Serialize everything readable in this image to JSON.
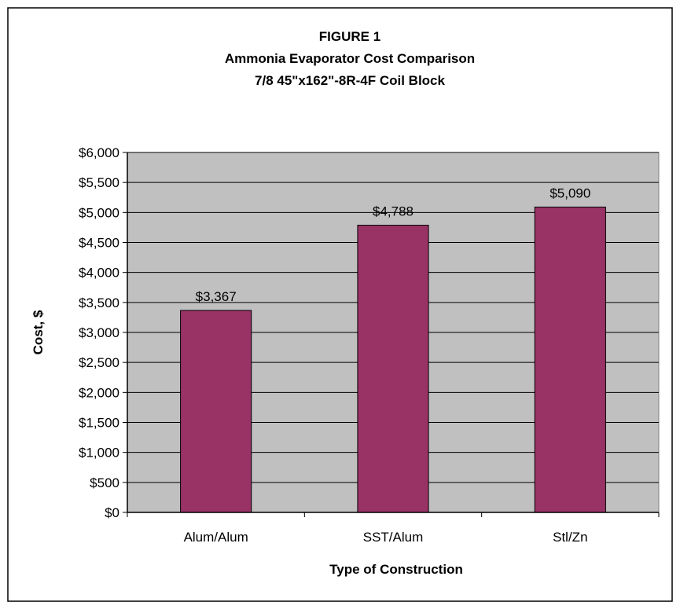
{
  "chart_data": {
    "type": "bar",
    "title_lines": [
      "FIGURE 1",
      "Ammonia Evaporator Cost Comparison",
      "7/8 45\"x162\"-8R-4F Coil  Block"
    ],
    "categories": [
      "Alum/Alum",
      "SST/Alum",
      "Stl/Zn"
    ],
    "values": [
      3367,
      4788,
      5090
    ],
    "data_labels": [
      "$3,367",
      "$4,788",
      "$5,090"
    ],
    "xlabel": "Type of Construction",
    "ylabel": "Cost, $",
    "ylim": [
      0,
      6000
    ],
    "yticks": [
      0,
      500,
      1000,
      1500,
      2000,
      2500,
      3000,
      3500,
      4000,
      4500,
      5000,
      5500,
      6000
    ],
    "ytick_labels": [
      "$0",
      "$500",
      "$1,000",
      "$1,500",
      "$2,000",
      "$2,500",
      "$3,000",
      "$3,500",
      "$4,000",
      "$4,500",
      "$5,000",
      "$5,500",
      "$6,000"
    ],
    "grid": true,
    "legend": "none",
    "colors": {
      "bar": "#993366",
      "plot_background": "#c0c0c0",
      "border": "#000000",
      "background": "#ffffff"
    }
  }
}
